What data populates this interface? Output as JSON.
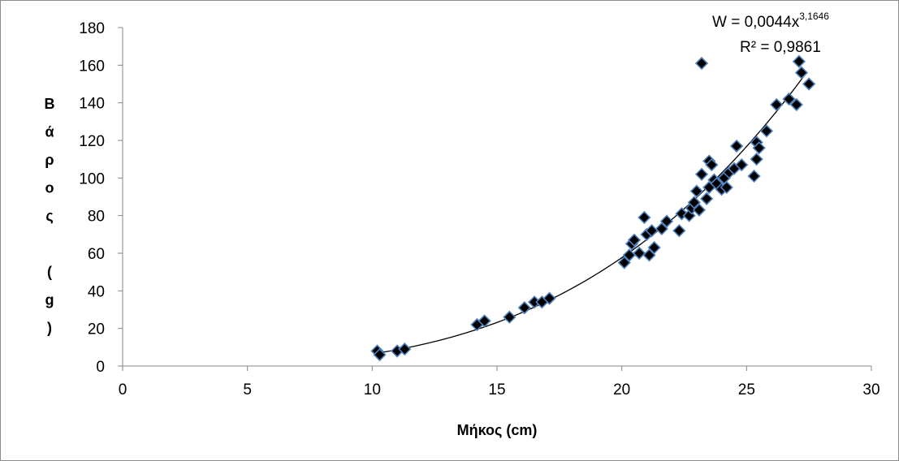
{
  "chart_data": {
    "type": "scatter",
    "xlabel": "Μήκος (cm)",
    "ylabel_chars": [
      "Β",
      "ά",
      "ρ",
      "ο",
      "ς",
      "",
      "(",
      "g",
      ")"
    ],
    "xlim": [
      0,
      30
    ],
    "ylim": [
      0,
      180
    ],
    "xticks": [
      0,
      5,
      10,
      15,
      20,
      25,
      30
    ],
    "yticks": [
      0,
      20,
      40,
      60,
      80,
      100,
      120,
      140,
      160,
      180
    ],
    "marker": "diamond",
    "marker_fill": "#000000",
    "marker_edge": "#4f81bd",
    "trendline": {
      "type": "power",
      "coefficient": 0.0044,
      "exponent": 3.1646,
      "x_range": [
        10.3,
        27.4
      ],
      "equation_text": "W = 0,0044x",
      "equation_exponent": "3,1646",
      "r2_text": "R² = 0,9861"
    },
    "points": [
      [
        10.2,
        8
      ],
      [
        10.3,
        6
      ],
      [
        11.0,
        8
      ],
      [
        11.3,
        9
      ],
      [
        14.2,
        22
      ],
      [
        14.5,
        24
      ],
      [
        15.5,
        26
      ],
      [
        16.1,
        31
      ],
      [
        16.5,
        34
      ],
      [
        16.8,
        34
      ],
      [
        17.1,
        36
      ],
      [
        20.1,
        55
      ],
      [
        20.3,
        59
      ],
      [
        20.4,
        65
      ],
      [
        20.5,
        67
      ],
      [
        20.7,
        60
      ],
      [
        20.9,
        79
      ],
      [
        21.0,
        70
      ],
      [
        21.1,
        59
      ],
      [
        21.2,
        72
      ],
      [
        21.3,
        63
      ],
      [
        21.6,
        73
      ],
      [
        21.8,
        77
      ],
      [
        22.3,
        72
      ],
      [
        22.4,
        81
      ],
      [
        22.7,
        80
      ],
      [
        22.8,
        84
      ],
      [
        22.9,
        87
      ],
      [
        23.0,
        93
      ],
      [
        23.1,
        83
      ],
      [
        23.2,
        102
      ],
      [
        23.2,
        161
      ],
      [
        23.4,
        89
      ],
      [
        23.5,
        109
      ],
      [
        23.5,
        95
      ],
      [
        23.6,
        107
      ],
      [
        23.7,
        99
      ],
      [
        23.8,
        97
      ],
      [
        24.0,
        94
      ],
      [
        24.1,
        100
      ],
      [
        24.2,
        95
      ],
      [
        24.3,
        103
      ],
      [
        24.5,
        105
      ],
      [
        24.6,
        117
      ],
      [
        24.8,
        107
      ],
      [
        25.3,
        101
      ],
      [
        25.4,
        110
      ],
      [
        25.4,
        119
      ],
      [
        25.5,
        116
      ],
      [
        25.8,
        125
      ],
      [
        26.2,
        139
      ],
      [
        26.7,
        142
      ],
      [
        27.0,
        139
      ],
      [
        27.1,
        162
      ],
      [
        27.2,
        156
      ],
      [
        27.5,
        150
      ]
    ]
  }
}
